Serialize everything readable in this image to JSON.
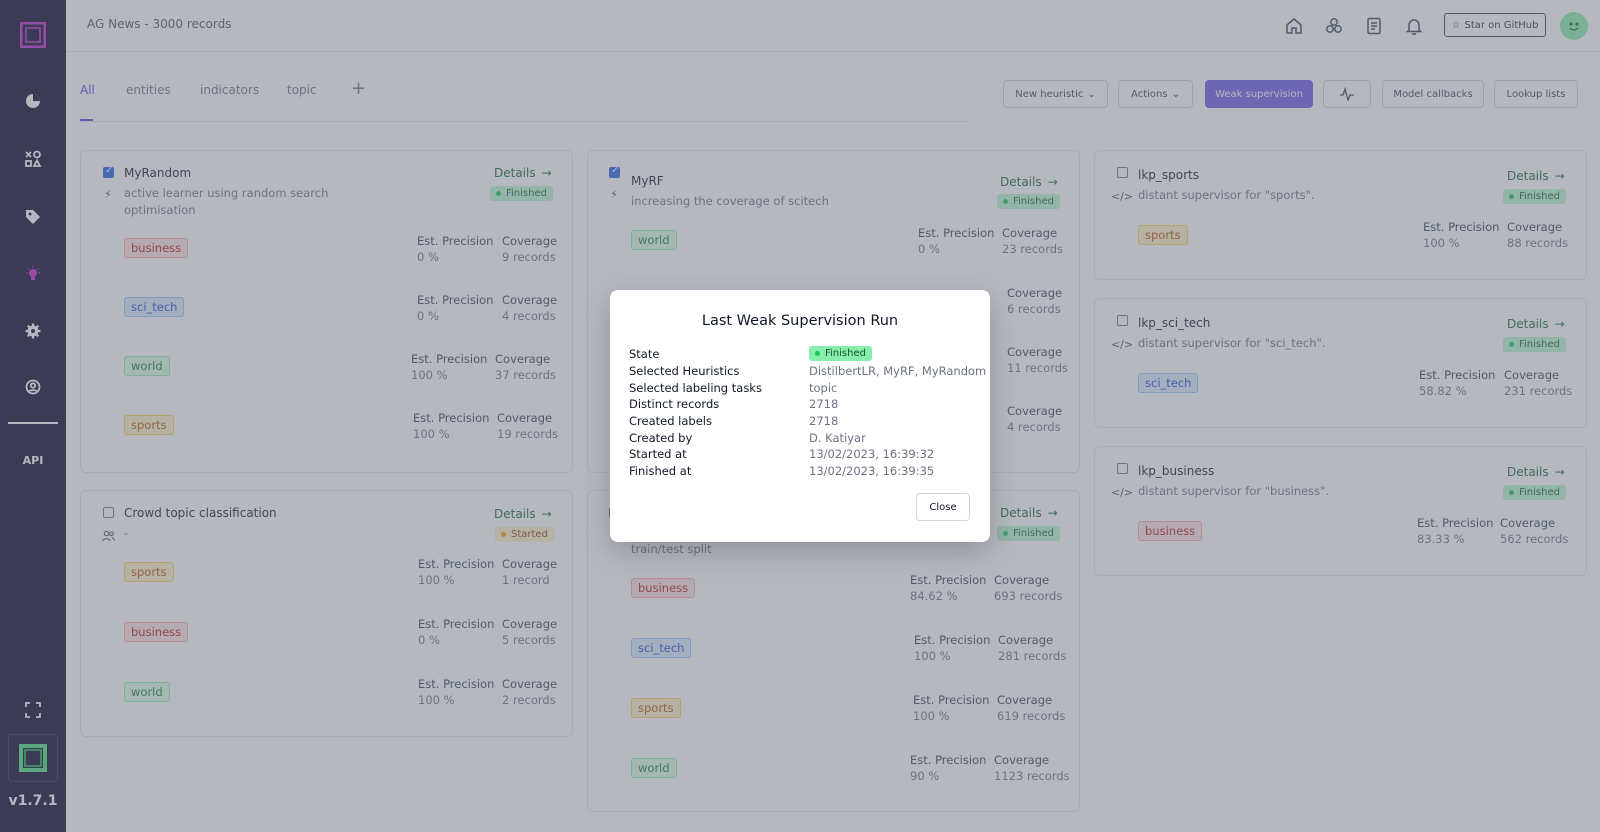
{
  "header": {
    "title": "AG News - 3000 records",
    "github_label": "Star on GitHub"
  },
  "sidebar": {
    "api_label": "API",
    "version": "v1.7.1"
  },
  "tabs": [
    {
      "label": "All",
      "active": true
    },
    {
      "label": "entities"
    },
    {
      "label": "indicators"
    },
    {
      "label": "topic"
    }
  ],
  "tab_add": "+",
  "toolbar": {
    "new_heuristic": "New heuristic",
    "actions": "Actions",
    "weak_supervision": "Weak supervision",
    "model_callbacks": "Model callbacks",
    "lookup_lists": "Lookup lists"
  },
  "metric_labels": {
    "precision": "Est. Precision",
    "coverage": "Coverage"
  },
  "details_label": "Details",
  "cards": [
    {
      "name": "MyRandom",
      "desc": "active learner using random search optimisation",
      "status": "Finished",
      "checked": true,
      "icon": "bolt-icon",
      "rows": [
        {
          "label": "business",
          "precision": "0 %",
          "coverage": "9 records"
        },
        {
          "label": "sci_tech",
          "precision": "0 %",
          "coverage": "4 records"
        },
        {
          "label": "world",
          "precision": "100 %",
          "coverage": "37 records"
        },
        {
          "label": "sports",
          "precision": "100 %",
          "coverage": "19 records"
        }
      ]
    },
    {
      "name": "MyRF",
      "desc": "increasing the coverage of scitech",
      "status": "Finished",
      "checked": true,
      "icon": "bolt-icon",
      "rows": [
        {
          "label": "world",
          "precision": "0 %",
          "coverage": "23 records"
        },
        {
          "label": "",
          "precision": "",
          "coverage": "6 records"
        },
        {
          "label": "",
          "precision": "",
          "coverage": "11 records"
        },
        {
          "label": "",
          "precision": "",
          "coverage": "4 records"
        }
      ]
    },
    {
      "name": "lkp_sports",
      "desc": "distant supervisor for \"sports\".",
      "status": "Finished",
      "checked": false,
      "icon": "code-icon",
      "rows": [
        {
          "label": "sports",
          "precision": "100 %",
          "coverage": "88 records"
        }
      ]
    },
    {
      "name": "lkp_sci_tech",
      "desc": "distant supervisor for \"sci_tech\".",
      "status": "Finished",
      "checked": false,
      "icon": "code-icon",
      "rows": [
        {
          "label": "sci_tech",
          "precision": "58.82 %",
          "coverage": "231 records"
        }
      ]
    },
    {
      "name": "lkp_business",
      "desc": "distant supervisor for \"business\".",
      "status": "Finished",
      "checked": false,
      "icon": "code-icon",
      "rows": [
        {
          "label": "business",
          "precision": "83.33 %",
          "coverage": "562 records"
        }
      ]
    },
    {
      "name": "Crowd topic classification",
      "desc": "-",
      "status": "Started",
      "checked": false,
      "icon": "users-icon",
      "rows": [
        {
          "label": "sports",
          "precision": "100 %",
          "coverage": "1 record"
        },
        {
          "label": "business",
          "precision": "0 %",
          "coverage": "5 records"
        },
        {
          "label": "world",
          "precision": "100 %",
          "coverage": "2 records"
        }
      ]
    },
    {
      "name": "",
      "desc": "train/test split",
      "status": "Finished",
      "checked": false,
      "icon": "bolt-icon",
      "rows": [
        {
          "label": "business",
          "precision": "84.62 %",
          "coverage": "693 records"
        },
        {
          "label": "sci_tech",
          "precision": "100 %",
          "coverage": "281 records"
        },
        {
          "label": "sports",
          "precision": "100 %",
          "coverage": "619 records"
        },
        {
          "label": "world",
          "precision": "90 %",
          "coverage": "1123 records"
        }
      ]
    }
  ],
  "modal": {
    "title": "Last Weak Supervision Run",
    "rows": [
      {
        "label": "State",
        "value": "Finished"
      },
      {
        "label": "Selected Heuristics",
        "value": "DistilbertLR, MyRF, MyRandom"
      },
      {
        "label": "Selected labeling tasks",
        "value": "topic"
      },
      {
        "label": "Distinct records",
        "value": "2718"
      },
      {
        "label": "Created labels",
        "value": "2718"
      },
      {
        "label": "Created by",
        "value": "D. Katiyar"
      },
      {
        "label": "Started at",
        "value": "13/02/2023, 16:39:32"
      },
      {
        "label": "Finished at",
        "value": "13/02/2023, 16:39:35"
      }
    ],
    "close_label": "Close"
  }
}
